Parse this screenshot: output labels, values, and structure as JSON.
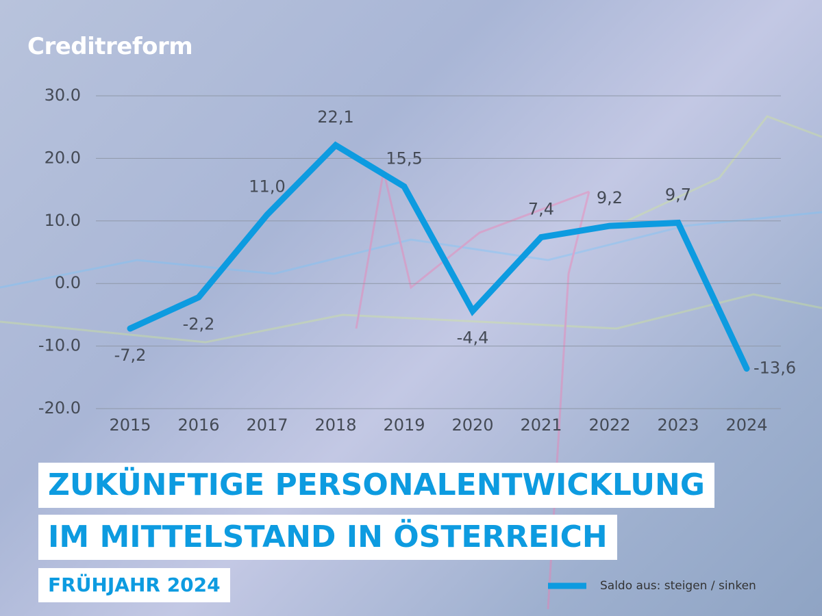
{
  "logo": "Creditreform",
  "chart_data": {
    "type": "line",
    "title_lines": [
      "ZUKÜNFTIGE PERSONALENTWICKLUNG",
      "IM MITTELSTAND IN ÖSTERREICH"
    ],
    "subtitle": "FRÜHJAHR 2024",
    "categories": [
      "2015",
      "2016",
      "2017",
      "2018",
      "2019",
      "2020",
      "2021",
      "2022",
      "2023",
      "2024"
    ],
    "series": [
      {
        "name": "Saldo aus: steigen / sinken",
        "color": "#0d9be0",
        "values": [
          -7.2,
          -2.2,
          11.0,
          22.1,
          15.5,
          -4.4,
          7.4,
          9.2,
          9.7,
          -13.6
        ],
        "value_labels": [
          "-7,2",
          "-2,2",
          "11,0",
          "22,1",
          "15,5",
          "-4,4",
          "7,4",
          "9,2",
          "9,7",
          "-13,6"
        ]
      }
    ],
    "ylim": [
      -20,
      30
    ],
    "yticks": [
      {
        "value": -20,
        "label": "-20.0"
      },
      {
        "value": -10,
        "label": "-10.0"
      },
      {
        "value": 0,
        "label": "0.0"
      },
      {
        "value": 10,
        "label": "10.0"
      },
      {
        "value": 20,
        "label": "20.0"
      },
      {
        "value": 30,
        "label": "30.0"
      }
    ],
    "grid": true,
    "legend": "bottom-right"
  }
}
